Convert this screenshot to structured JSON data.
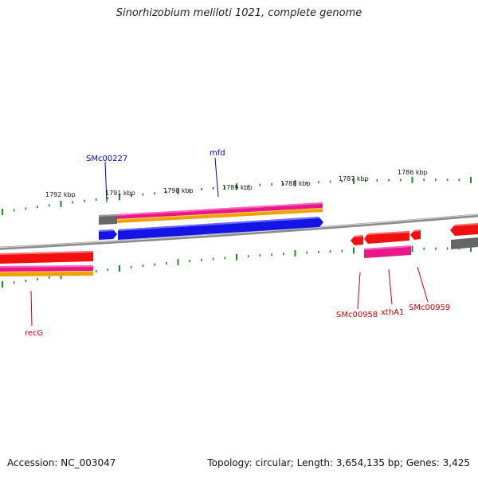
{
  "title": "Sinorhizobium meliloti 1021, complete genome",
  "footer": {
    "accession": "Accession: NC_003047",
    "summary": "Topology: circular; Length: 3,654,135 bp; Genes: 3,425"
  },
  "scale_labels": [
    "1792 kbp",
    "1791 kbp",
    "1790 kbp",
    "1789 kbp",
    "1788 kbp",
    "1787 kbp",
    "1786 kbp"
  ],
  "gene_labels": {
    "SMc00227": "SMc00227",
    "mfd": "mfd",
    "recG": "recG",
    "SMc00958": "SMc00958",
    "xthA1": "xthA1",
    "SMc00959": "SMc00959"
  },
  "colors": {
    "forward_label": "#0000cc",
    "reverse_label": "#cc0000",
    "tick": "#228b22",
    "backbone": "#8a8a8a",
    "gene_blue": "#1414e6",
    "gene_red": "#f01010",
    "gene_pink": "#e8188c",
    "gene_orange": "#f0a000",
    "gene_grey": "#666666"
  }
}
